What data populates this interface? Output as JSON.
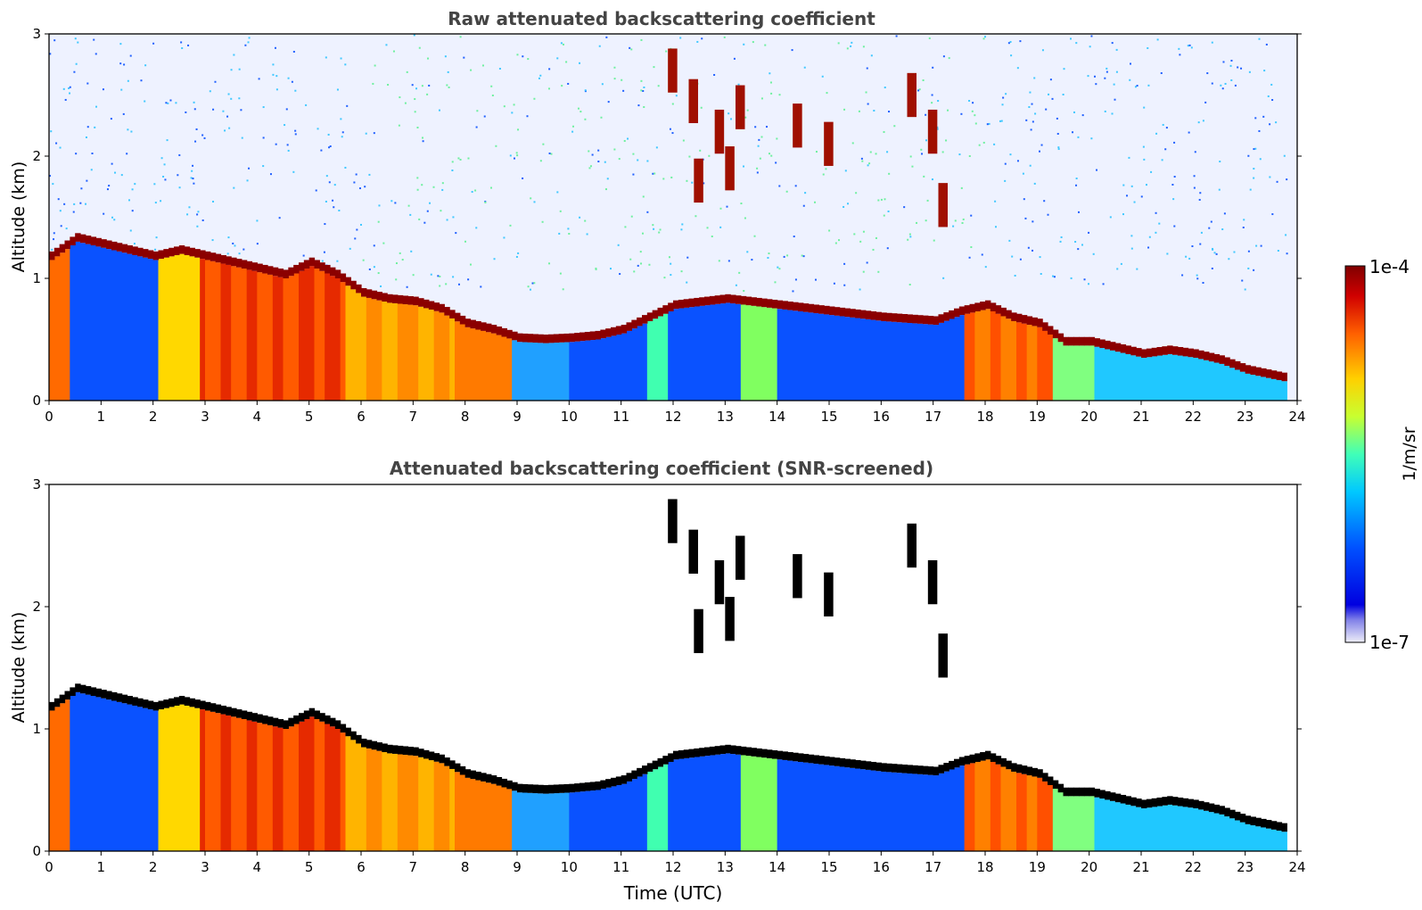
{
  "chart_data": [
    {
      "type": "heatmap",
      "title": "Raw attenuated backscattering coefficient",
      "xlabel": "",
      "ylabel": "Altitude (km)",
      "xlim": [
        0,
        24
      ],
      "ylim": [
        0,
        3
      ],
      "xticks": [
        "0",
        "1",
        "2",
        "3",
        "4",
        "5",
        "6",
        "7",
        "8",
        "9",
        "10",
        "11",
        "12",
        "13",
        "14",
        "15",
        "16",
        "17",
        "18",
        "19",
        "20",
        "21",
        "22",
        "23",
        "24"
      ],
      "yticks": [
        "0",
        "1",
        "2",
        "3"
      ],
      "screened": false,
      "cloud_base_km": [
        [
          0,
          1.15
        ],
        [
          0.5,
          1.3
        ],
        [
          1,
          1.25
        ],
        [
          1.5,
          1.2
        ],
        [
          2,
          1.15
        ],
        [
          2.5,
          1.2
        ],
        [
          3,
          1.15
        ],
        [
          3.5,
          1.1
        ],
        [
          4,
          1.05
        ],
        [
          4.5,
          1.0
        ],
        [
          5,
          1.1
        ],
        [
          5.5,
          1.0
        ],
        [
          6,
          0.85
        ],
        [
          6.5,
          0.8
        ],
        [
          7,
          0.78
        ],
        [
          7.5,
          0.72
        ],
        [
          8,
          0.6
        ],
        [
          8.5,
          0.55
        ],
        [
          9,
          0.48
        ],
        [
          9.5,
          0.47
        ],
        [
          10,
          0.48
        ],
        [
          10.5,
          0.5
        ],
        [
          11,
          0.55
        ],
        [
          11.5,
          0.65
        ],
        [
          12,
          0.75
        ],
        [
          13,
          0.8
        ],
        [
          14,
          0.75
        ],
        [
          15,
          0.7
        ],
        [
          16,
          0.65
        ],
        [
          17,
          0.62
        ],
        [
          17.5,
          0.7
        ],
        [
          18,
          0.75
        ],
        [
          18.5,
          0.65
        ],
        [
          19,
          0.6
        ],
        [
          19.5,
          0.45
        ],
        [
          20,
          0.45
        ],
        [
          20.5,
          0.4
        ],
        [
          21,
          0.35
        ],
        [
          21.5,
          0.38
        ],
        [
          22,
          0.35
        ],
        [
          22.5,
          0.3
        ],
        [
          23,
          0.22
        ],
        [
          23.8,
          0.15
        ]
      ]
    },
    {
      "type": "heatmap",
      "title": "Attenuated backscattering coefficient (SNR-screened)",
      "xlabel": "Time (UTC)",
      "ylabel": "Altitude (km)",
      "xlim": [
        0,
        24
      ],
      "ylim": [
        0,
        3
      ],
      "xticks": [
        "0",
        "1",
        "2",
        "3",
        "4",
        "5",
        "6",
        "7",
        "8",
        "9",
        "10",
        "11",
        "12",
        "13",
        "14",
        "15",
        "16",
        "17",
        "18",
        "19",
        "20",
        "21",
        "22",
        "23",
        "24"
      ],
      "yticks": [
        "0",
        "1",
        "2",
        "3"
      ],
      "screened": true,
      "cloud_base_km": [
        [
          0,
          1.15
        ],
        [
          0.5,
          1.3
        ],
        [
          1,
          1.25
        ],
        [
          1.5,
          1.2
        ],
        [
          2,
          1.15
        ],
        [
          2.5,
          1.2
        ],
        [
          3,
          1.15
        ],
        [
          3.5,
          1.1
        ],
        [
          4,
          1.05
        ],
        [
          4.5,
          1.0
        ],
        [
          5,
          1.1
        ],
        [
          5.5,
          1.0
        ],
        [
          6,
          0.85
        ],
        [
          6.5,
          0.8
        ],
        [
          7,
          0.78
        ],
        [
          7.5,
          0.72
        ],
        [
          8,
          0.6
        ],
        [
          8.5,
          0.55
        ],
        [
          9,
          0.48
        ],
        [
          9.5,
          0.47
        ],
        [
          10,
          0.48
        ],
        [
          10.5,
          0.5
        ],
        [
          11,
          0.55
        ],
        [
          11.5,
          0.65
        ],
        [
          12,
          0.75
        ],
        [
          13,
          0.8
        ],
        [
          14,
          0.75
        ],
        [
          15,
          0.7
        ],
        [
          16,
          0.65
        ],
        [
          17,
          0.62
        ],
        [
          17.5,
          0.7
        ],
        [
          18,
          0.75
        ],
        [
          18.5,
          0.65
        ],
        [
          19,
          0.6
        ],
        [
          19.5,
          0.45
        ],
        [
          20,
          0.45
        ],
        [
          20.5,
          0.4
        ],
        [
          21,
          0.35
        ],
        [
          21.5,
          0.38
        ],
        [
          22,
          0.35
        ],
        [
          22.5,
          0.3
        ],
        [
          23,
          0.22
        ],
        [
          23.8,
          0.15
        ]
      ]
    }
  ],
  "colorbar": {
    "max_label": "1e-4",
    "min_label": "1e-7",
    "unit_label": "1/m/sr",
    "colormap": "jet",
    "colors": [
      "#eeeef8",
      "#0000cd",
      "#0050ff",
      "#00c8ff",
      "#40ffb8",
      "#c8ff30",
      "#ffd000",
      "#ff6000",
      "#d00000",
      "#800000"
    ]
  }
}
